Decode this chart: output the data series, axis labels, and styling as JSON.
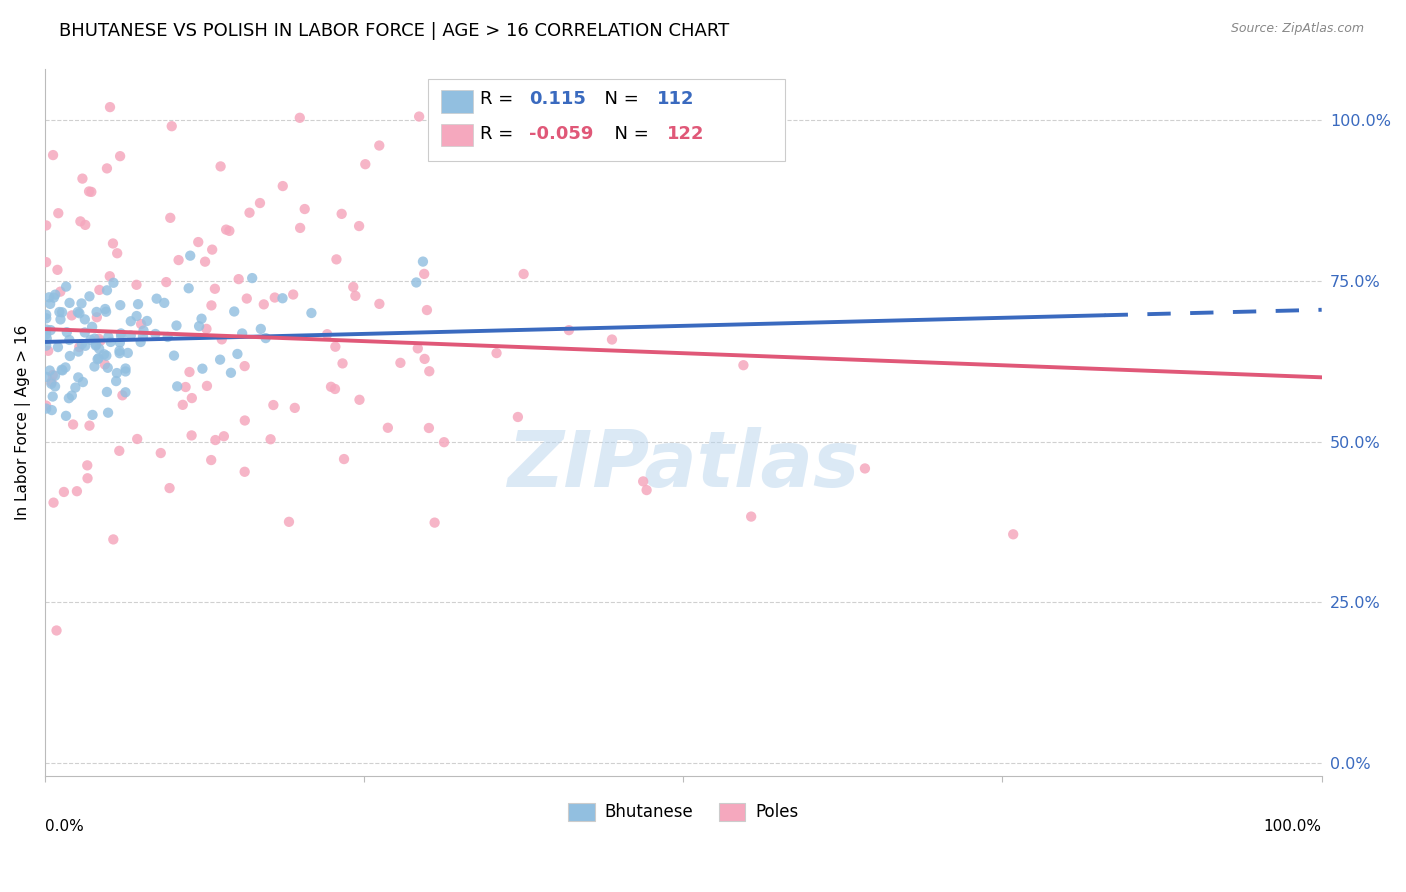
{
  "title": "BHUTANESE VS POLISH IN LABOR FORCE | AGE > 16 CORRELATION CHART",
  "source_text": "Source: ZipAtlas.com",
  "ylabel": "In Labor Force | Age > 16",
  "ytick_labels": [
    "0.0%",
    "25.0%",
    "50.0%",
    "75.0%",
    "100.0%"
  ],
  "ytick_values": [
    0.0,
    0.25,
    0.5,
    0.75,
    1.0
  ],
  "xlim": [
    0.0,
    1.0
  ],
  "ylim": [
    -0.02,
    1.08
  ],
  "blue_R": 0.115,
  "blue_N": 112,
  "pink_R": -0.059,
  "pink_N": 122,
  "blue_color": "#92bfe0",
  "pink_color": "#f5a8be",
  "blue_line_color": "#3a6abf",
  "pink_line_color": "#e05878",
  "legend_label_blue": "Bhutanese",
  "legend_label_pink": "Poles",
  "watermark": "ZIPatlas",
  "background_color": "#ffffff",
  "grid_color": "#d0d0d0",
  "title_fontsize": 13,
  "legend_fontsize": 13,
  "blue_line_solid_end": 0.83,
  "blue_line_y_start": 0.655,
  "blue_line_y_end": 0.705,
  "pink_line_y_start": 0.675,
  "pink_line_y_end": 0.6
}
